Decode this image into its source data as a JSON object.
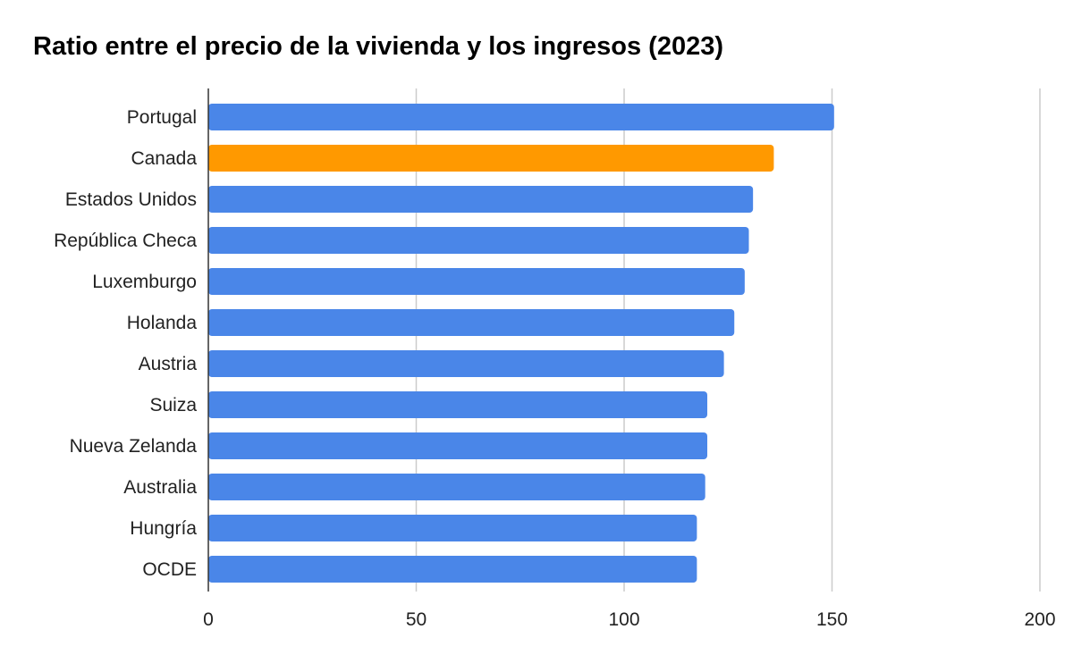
{
  "chart_data": {
    "type": "bar",
    "orientation": "horizontal",
    "title": "Ratio entre el precio de la vivienda y los ingresos (2023)",
    "xlabel": "",
    "ylabel": "",
    "xlim": [
      0,
      200
    ],
    "x_ticks": [
      "0",
      "50",
      "100",
      "150",
      "200"
    ],
    "grid": "vertical",
    "legend": "none",
    "categories": [
      "Portugal",
      "Canada",
      "Estados Unidos",
      "República Checa",
      "Luxemburgo",
      "Holanda",
      "Austria",
      "Suiza",
      "Nueva Zelanda",
      "Australia",
      "Hungría",
      "OCDE"
    ],
    "values": [
      150.5,
      136,
      131,
      130,
      129,
      126.5,
      124,
      120,
      120,
      119.5,
      117.5,
      117.5
    ],
    "colors": {
      "default": "#4a86e8",
      "highlight": "#ff9900",
      "highlight_category": "Canada",
      "grid": "#cccccc",
      "axis": "#333333"
    }
  }
}
